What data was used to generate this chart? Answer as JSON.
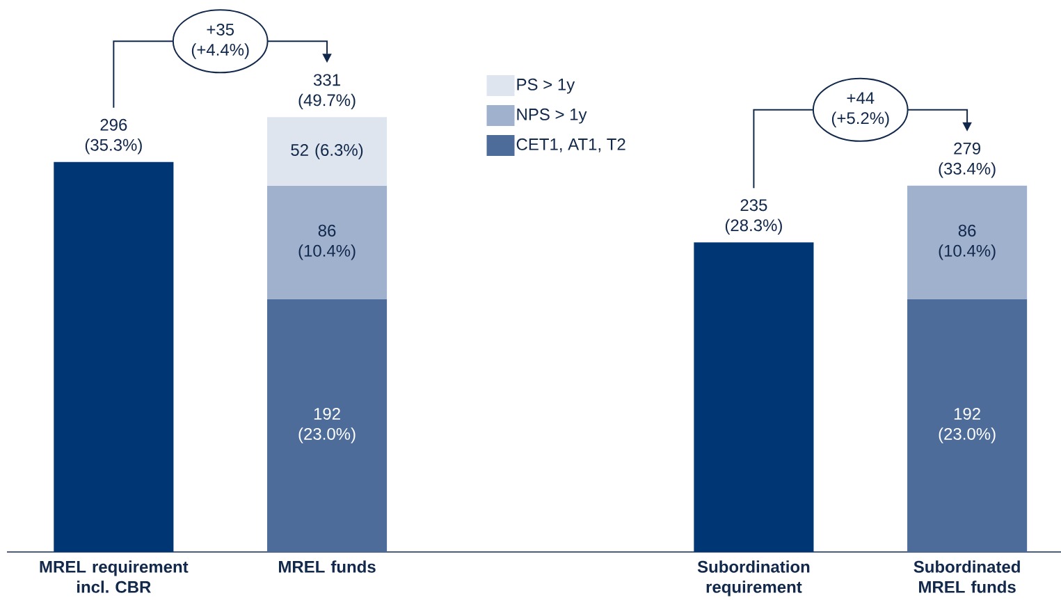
{
  "chart_data": {
    "type": "bar",
    "stacked": true,
    "categories": [
      "MREL requirement incl. CBR",
      "MREL funds",
      null,
      "Subordination requirement",
      "Subordinated MREL funds"
    ],
    "series": [
      {
        "color": "#003673",
        "values": [
          296,
          null,
          null,
          235,
          null
        ],
        "value_labels": [
          "296 (35.3%)",
          null,
          null,
          "235 (28.3%)",
          null
        ]
      },
      {
        "name": "CET1, AT1, T2",
        "color": "#4d6c9a",
        "values": [
          null,
          192,
          null,
          null,
          192
        ],
        "value_labels": [
          null,
          "192 (23.0%)",
          null,
          null,
          "192 (23.0%)"
        ]
      },
      {
        "name": "NPS > 1y",
        "color": "#a0b1ce",
        "values": [
          null,
          86,
          null,
          null,
          86
        ],
        "value_labels": [
          null,
          "86 (10.4%)",
          null,
          null,
          "86 (10.4%)"
        ]
      },
      {
        "name": "PS > 1y",
        "color": "#dfe5ee",
        "values": [
          null,
          52,
          null,
          null,
          null
        ],
        "value_labels": [
          null,
          "52 (6.3%)",
          null,
          null,
          null
        ]
      }
    ],
    "totals": [
      null,
      "331 (49.7%)",
      null,
      null,
      "279 (33.4%)"
    ],
    "annotations": [
      "+35 (+4.4%)",
      "+44 (+5.2%)"
    ],
    "legend": "top"
  }
}
